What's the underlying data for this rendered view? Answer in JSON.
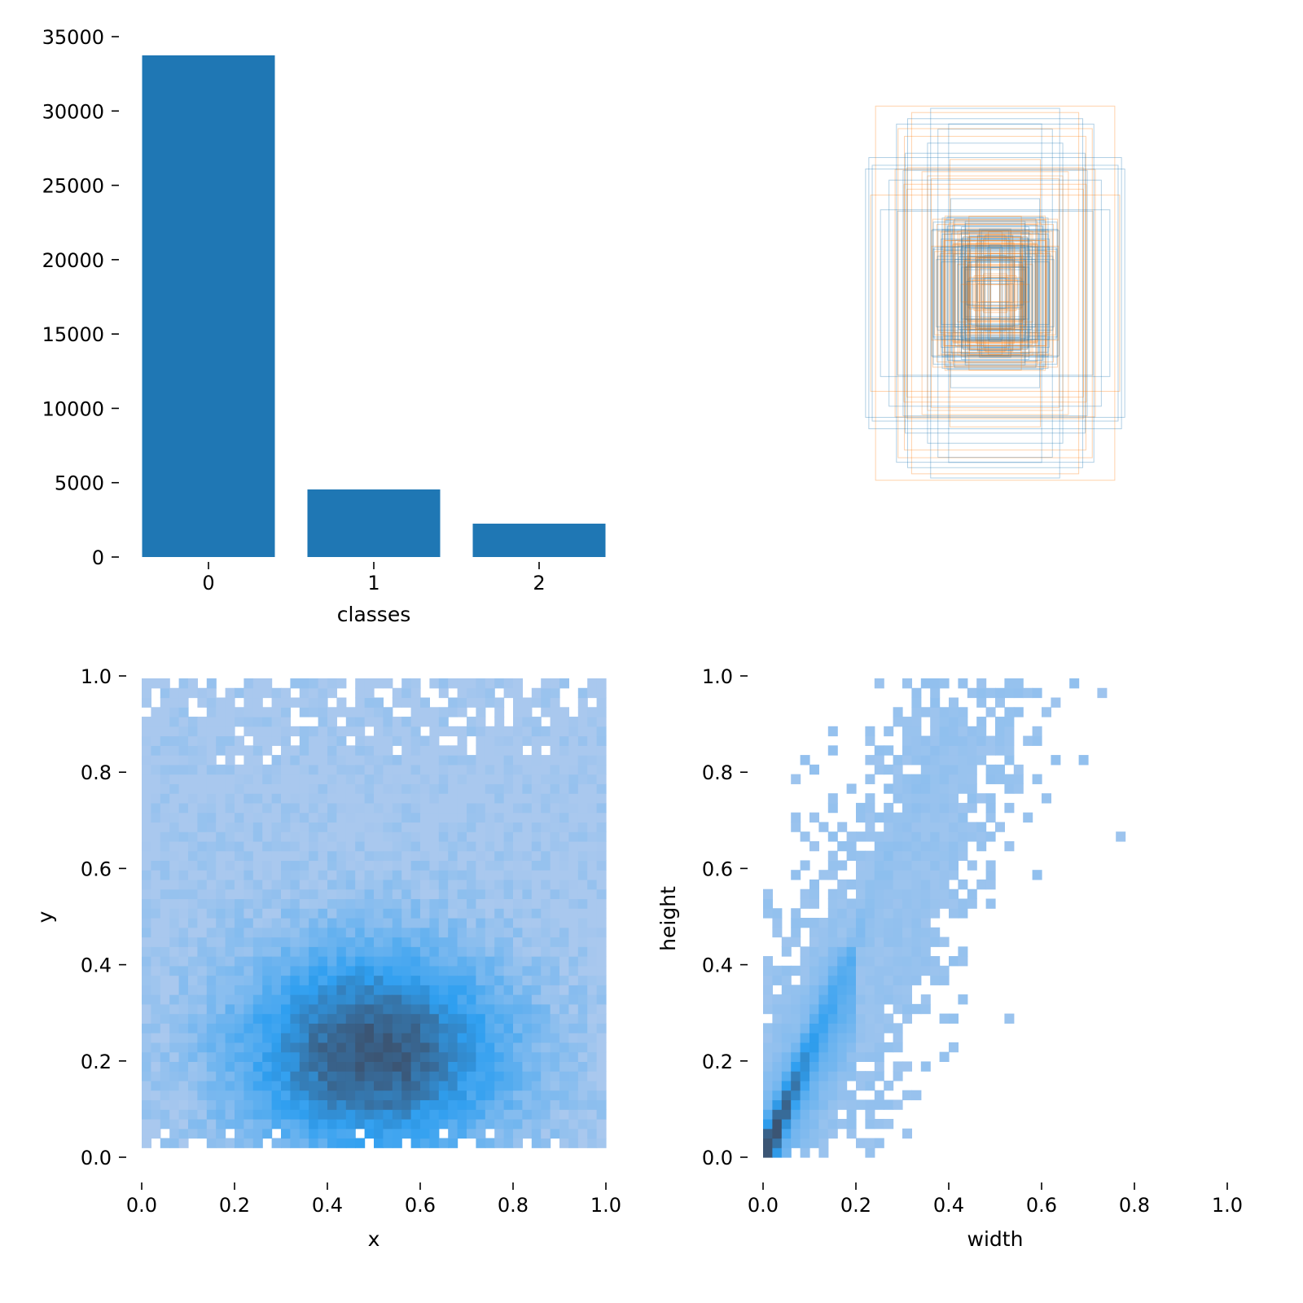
{
  "chart_data": [
    {
      "type": "bar",
      "title": "",
      "xlabel": "classes",
      "ylabel": "",
      "categories": [
        "0",
        "1",
        "2"
      ],
      "values": [
        33740,
        4545,
        2245
      ],
      "ylim": [
        0,
        35000
      ],
      "yticks": [
        0,
        5000,
        10000,
        15000,
        20000,
        25000,
        30000,
        35000
      ],
      "ytick_labels": [
        "0",
        "5000",
        "10000",
        "15000",
        "20000",
        "25000",
        "30000",
        "35000"
      ],
      "color": "#1f77b4",
      "grid": false,
      "legend": null
    },
    {
      "type": "other",
      "description": "Overlay of sampled bounding-box rectangles centered at the same point, drawn with thin semi-transparent outlines",
      "series_colors": [
        "#1f77b4",
        "#ff7f0e"
      ],
      "axes_visible": false
    },
    {
      "type": "heatmap",
      "description": "2D histogram of box center positions",
      "xlabel": "x",
      "ylabel": "y",
      "xlim": [
        0,
        1
      ],
      "ylim": [
        0,
        1
      ],
      "xticks": [
        "0.0",
        "0.2",
        "0.4",
        "0.6",
        "0.8",
        "1.0"
      ],
      "yticks": [
        "0.0",
        "0.2",
        "0.4",
        "0.6",
        "0.8",
        "1.0"
      ],
      "bins": 50,
      "peak": {
        "x": 0.5,
        "y": 0.22
      },
      "spread": {
        "x": 0.2,
        "y": 0.15
      },
      "colors": {
        "low": "#a9c8ee",
        "mid": "#2f9ff0",
        "high": "#3b5574"
      },
      "grid": false
    },
    {
      "type": "heatmap",
      "description": "2D histogram of box width vs height",
      "xlabel": "width",
      "ylabel": "height",
      "xlim": [
        0,
        1
      ],
      "ylim": [
        0,
        1
      ],
      "xticks": [
        "0.0",
        "0.2",
        "0.4",
        "0.6",
        "0.8",
        "1.0"
      ],
      "yticks": [
        "0.0",
        "0.2",
        "0.4",
        "0.6",
        "0.8",
        "1.0"
      ],
      "bins": 50,
      "dense_ridge": {
        "from": [
          0.0,
          0.0
        ],
        "to": [
          0.12,
          0.28
        ]
      },
      "colors": {
        "low": "#a9c8ee",
        "mid": "#2f9ff0",
        "high": "#3b5574"
      },
      "grid": false
    }
  ],
  "panels": {
    "classes": {
      "xlabel": "classes",
      "xticks": [
        "0",
        "1",
        "2"
      ],
      "yticks": [
        "0",
        "5000",
        "10000",
        "15000",
        "20000",
        "25000",
        "30000",
        "35000"
      ]
    },
    "xy": {
      "xlabel": "x",
      "ylabel": "y",
      "ticks": [
        "0.0",
        "0.2",
        "0.4",
        "0.6",
        "0.8",
        "1.0"
      ]
    },
    "wh": {
      "xlabel": "width",
      "ylabel": "height",
      "ticks": [
        "0.0",
        "0.2",
        "0.4",
        "0.6",
        "0.8",
        "1.0"
      ]
    }
  }
}
